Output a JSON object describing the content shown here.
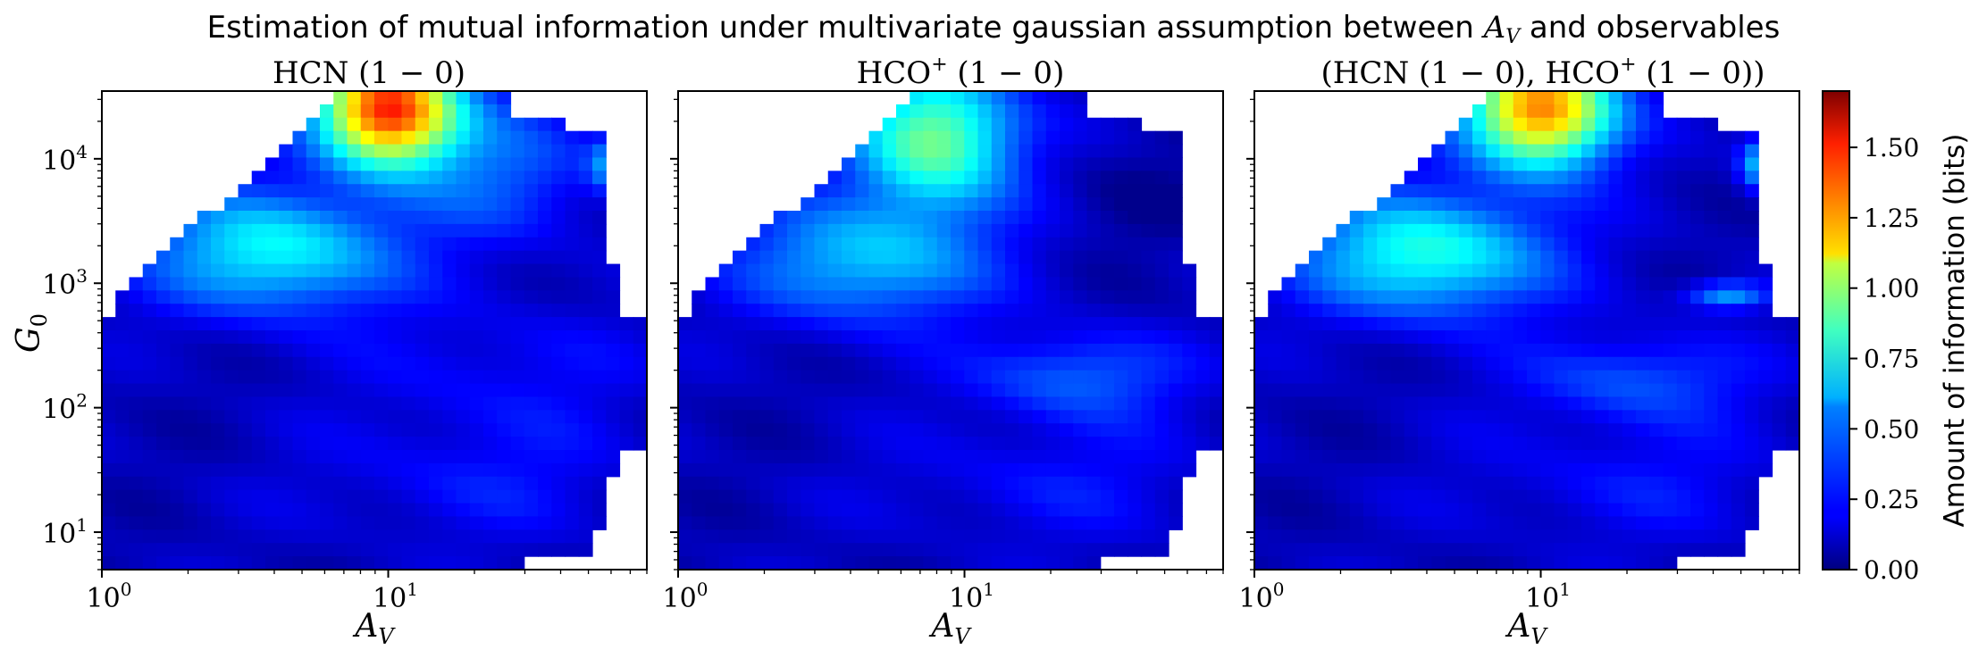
{
  "figure": {
    "title": "Estimation of mutual information under multivariate gaussian assumption between A_V and observables"
  },
  "chart_data": [
    {
      "type": "heatmap",
      "title": "HCN (1 − 0)",
      "xlabel": "A_V",
      "ylabel": "G_0",
      "xscale": "log",
      "yscale": "log",
      "xlim": [
        1,
        80
      ],
      "ylim": [
        5,
        35000
      ],
      "x_ticks": [
        "10^0",
        "10^1"
      ],
      "y_ticks": [
        "10^1",
        "10^2",
        "10^3",
        "10^4"
      ],
      "colormap": "jet",
      "peak_bits": 1.45,
      "peak_location": {
        "A_V": 10,
        "G_0": 25000
      }
    },
    {
      "type": "heatmap",
      "title": "HCO⁺ (1 − 0)",
      "xlabel": "A_V",
      "ylabel": "",
      "xscale": "log",
      "yscale": "log",
      "xlim": [
        1,
        80
      ],
      "ylim": [
        5,
        35000
      ],
      "x_ticks": [
        "10^0",
        "10^1"
      ],
      "colormap": "jet",
      "peak_bits": 0.85,
      "peak_location": {
        "A_V": 8,
        "G_0": 20000
      }
    },
    {
      "type": "heatmap",
      "title": "(HCN (1 − 0), HCO⁺ (1 − 0))",
      "xlabel": "A_V",
      "ylabel": "",
      "xscale": "log",
      "yscale": "log",
      "xlim": [
        1,
        80
      ],
      "ylim": [
        5,
        35000
      ],
      "x_ticks": [
        "10^0",
        "10^1"
      ],
      "colormap": "jet",
      "peak_bits": 1.3,
      "peak_location": {
        "A_V": 10,
        "G_0": 25000
      }
    }
  ],
  "colorbar": {
    "label": "Amount of information (bits)",
    "range": [
      0,
      1.7
    ],
    "ticks": [
      "0.00",
      "0.25",
      "0.50",
      "0.75",
      "1.00",
      "1.25",
      "1.50"
    ],
    "ticks_values": [
      0,
      0.25,
      0.5,
      0.75,
      1.0,
      1.25,
      1.5
    ]
  }
}
